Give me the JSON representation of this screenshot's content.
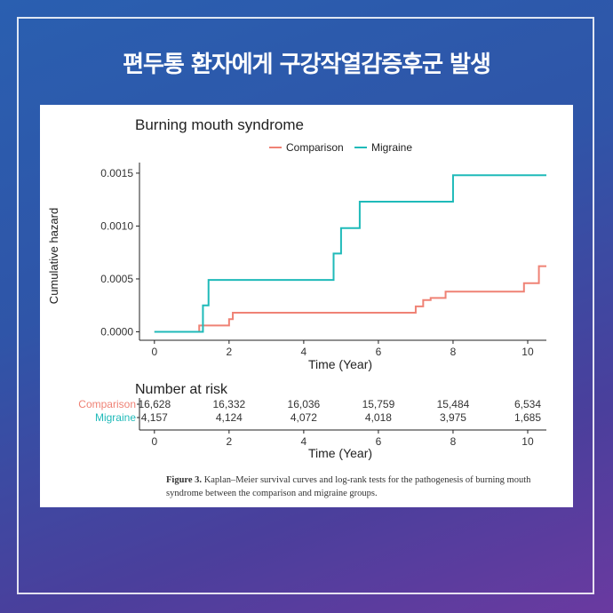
{
  "page": {
    "headline": "편두통 환자에게  구강작열감증후군 발생",
    "caption_label": "Figure 3.",
    "caption_text": "Kaplan–Meier survival curves and log-rank tests for the pathogenesis of burning mouth syndrome between the comparison and migraine groups."
  },
  "colors": {
    "comparison": "#ef8275",
    "migraine": "#1fbab9",
    "text": "#333333"
  },
  "chart_data": {
    "type": "line",
    "title": "Burning mouth syndrome",
    "xlabel": "Time (Year)",
    "ylabel": "Cumulative hazard",
    "xlim": [
      -0.4,
      10.5
    ],
    "ylim": [
      -8e-05,
      0.0016
    ],
    "x_ticks": [
      0,
      2,
      4,
      6,
      8,
      10
    ],
    "x_tick_labels": [
      "0",
      "2",
      "4",
      "6",
      "8",
      "10"
    ],
    "y_ticks": [
      0.0,
      0.0005,
      0.001,
      0.0015
    ],
    "y_tick_labels": [
      "0.0000",
      "0.0005",
      "0.0010",
      "0.0015"
    ],
    "legend": [
      "Comparison",
      "Migraine"
    ],
    "legend_position": "top",
    "series": [
      {
        "name": "Comparison",
        "color": "#ef8275",
        "x": [
          0,
          1.2,
          2.0,
          2.1,
          7.0,
          7.2,
          7.4,
          7.8,
          9.9,
          10.3,
          10.5
        ],
        "y": [
          0,
          6e-05,
          0.00012,
          0.00018,
          0.00024,
          0.0003,
          0.00032,
          0.00038,
          0.00046,
          0.00062,
          0.00062
        ]
      },
      {
        "name": "Migraine",
        "color": "#1fbab9",
        "x": [
          0,
          1.3,
          1.45,
          4.8,
          5.0,
          5.5,
          8.0,
          10.5
        ],
        "y": [
          0,
          0.00025,
          0.00049,
          0.00074,
          0.00098,
          0.00123,
          0.00148,
          0.00148
        ]
      }
    ],
    "risk_table": {
      "title": "Number at risk",
      "xlabel": "Time (Year)",
      "x_ticks": [
        0,
        2,
        4,
        6,
        8,
        10
      ],
      "rows": [
        {
          "name": "Comparison",
          "color": "#ef8275",
          "values": [
            "16,628",
            "16,332",
            "16,036",
            "15,759",
            "15,484",
            "6,534"
          ]
        },
        {
          "name": "Migraine",
          "color": "#1fbab9",
          "values": [
            "4,157",
            "4,124",
            "4,072",
            "4,018",
            "3,975",
            "1,685"
          ]
        }
      ]
    }
  }
}
